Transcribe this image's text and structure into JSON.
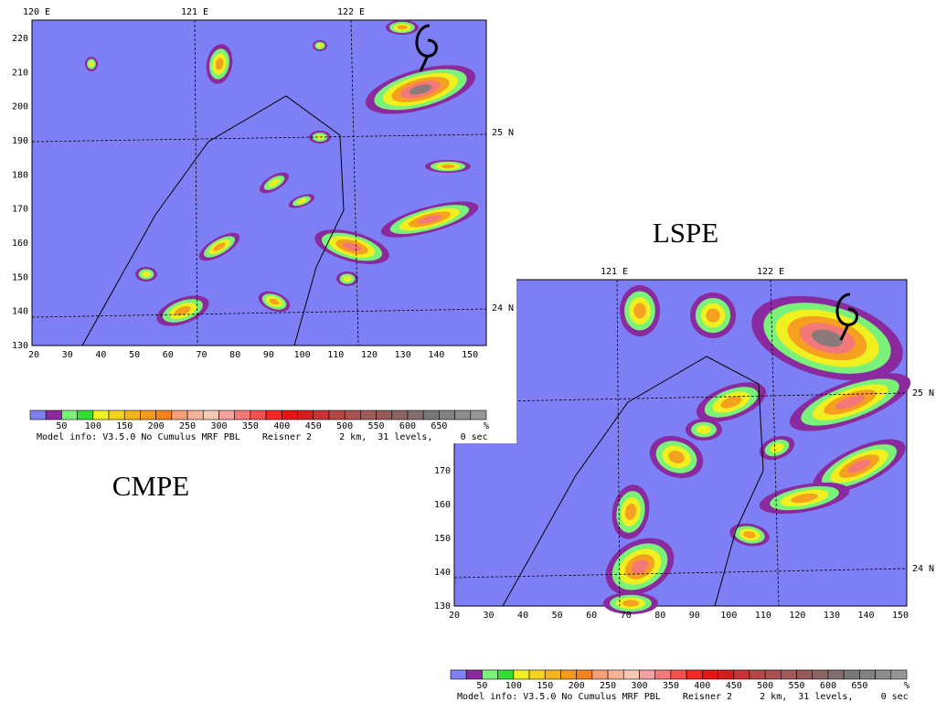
{
  "panel_left": {
    "title": "CMPE",
    "lon_labels": [
      "120 E",
      "121 E",
      "122 E"
    ],
    "lat_labels": [
      "25 N",
      "24 N"
    ],
    "y_ticks": [
      130,
      140,
      150,
      160,
      170,
      180,
      190,
      200,
      210,
      220
    ],
    "x_ticks": [
      20,
      30,
      40,
      50,
      60,
      70,
      80,
      90,
      100,
      110,
      120,
      130,
      140,
      150
    ],
    "colorbar_ticks": [
      50,
      100,
      150,
      200,
      250,
      300,
      350,
      400,
      450,
      500,
      550,
      600,
      650
    ],
    "colorbar_unit": "%",
    "model_info": "Model info: V3.5.0 No Cumulus MRF PBL    Reisner 2     2 km,  31 levels,     0 sec"
  },
  "panel_right": {
    "title": "LSPE",
    "lon_labels": [
      "121 E",
      "122 E"
    ],
    "lat_labels": [
      "25 N",
      "24 N"
    ],
    "y_ticks": [
      130,
      140,
      150,
      160,
      170
    ],
    "x_ticks": [
      20,
      30,
      40,
      50,
      60,
      70,
      80,
      90,
      100,
      110,
      120,
      130,
      140,
      150
    ],
    "colorbar_ticks": [
      50,
      100,
      150,
      200,
      250,
      300,
      350,
      400,
      450,
      500,
      550,
      600,
      650
    ],
    "colorbar_unit": "%",
    "model_info": "Model info: V3.5.0 No Cumulus MRF PBL    Reisner 2     2 km,  31 levels,     0 sec"
  }
}
